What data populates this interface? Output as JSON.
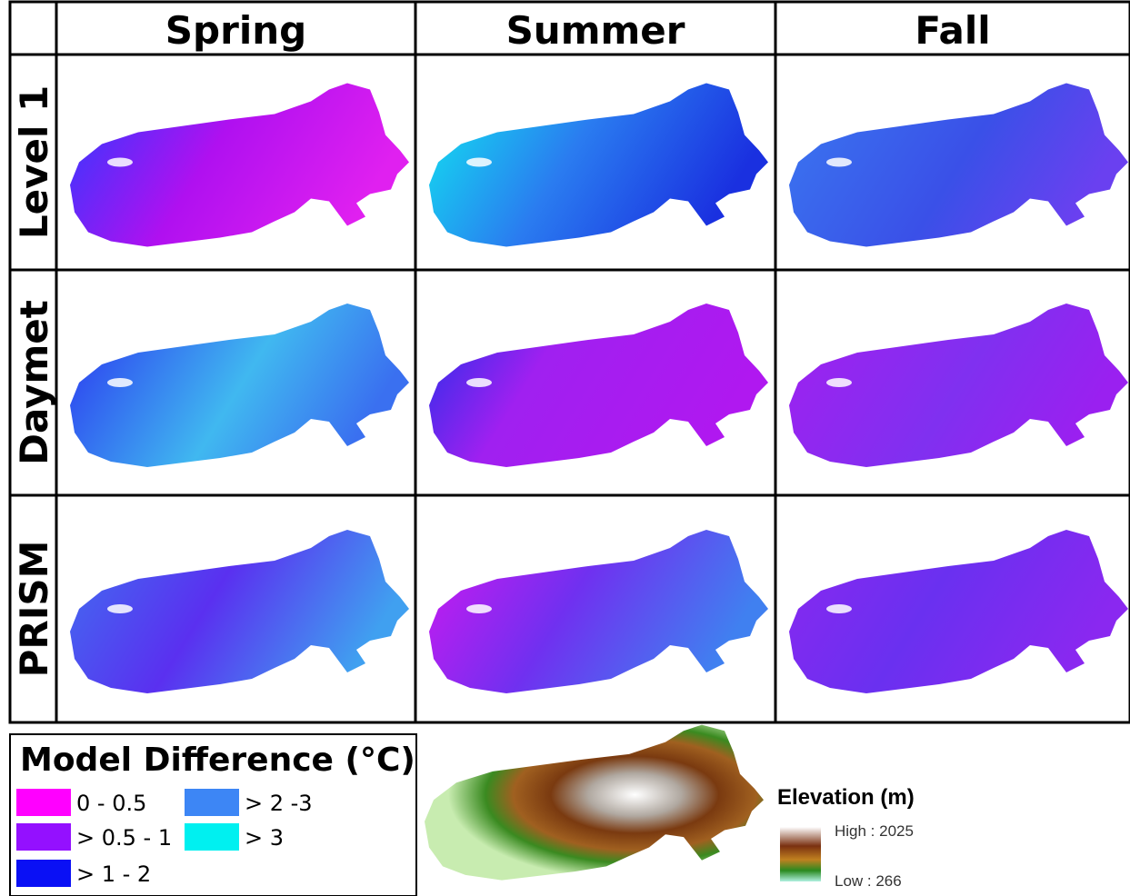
{
  "header": {
    "columns": [
      "Spring",
      "Summer",
      "Fall"
    ]
  },
  "rows": [
    "Level 1",
    "Daymet",
    "PRISM"
  ],
  "legend": {
    "title": "Model Difference (°C)",
    "items": [
      {
        "label": "0 - 0.5",
        "color": "#ff00ff"
      },
      {
        "label": "> 0.5 - 1",
        "color": "#9410ff"
      },
      {
        "label": "> 1 - 2",
        "color": "#0a10f5"
      },
      {
        "label": "> 2 -3",
        "color": "#3d86f5"
      },
      {
        "label": "> 3",
        "color": "#00f0f0"
      }
    ]
  },
  "elevation_legend": {
    "title": "Elevation (m)",
    "high": "High : 2025",
    "low": "Low : 266"
  }
}
